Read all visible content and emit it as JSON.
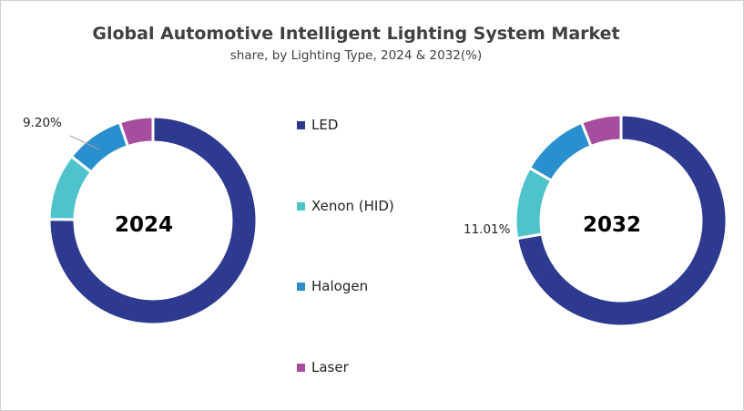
{
  "chart_data": [
    {
      "type": "pie",
      "title": "Global Automotive Intelligent Lighting System Market",
      "subtitle": "share, by Lighting Type, 2024 & 2032(%)",
      "center_label": "2024",
      "categories": [
        "LED",
        "Xenon (HID)",
        "Halogen",
        "Laser"
      ],
      "values": [
        75.2,
        10.4,
        9.2,
        5.2
      ],
      "data_labels": {
        "Halogen": "9.20%"
      },
      "donut": true
    },
    {
      "type": "pie",
      "center_label": "2032",
      "categories": [
        "LED",
        "Xenon (HID)",
        "Halogen",
        "Laser"
      ],
      "values": [
        72.3,
        11.01,
        10.6,
        6.1
      ],
      "data_labels": {
        "Xenon (HID)": "11.01%"
      },
      "donut": true
    }
  ],
  "legend": {
    "position": "center",
    "items": [
      {
        "label": "LED",
        "color": "#2e3a8f"
      },
      {
        "label": "Xenon (HID)",
        "color": "#4fc3cc"
      },
      {
        "label": "Halogen",
        "color": "#2a8fcf"
      },
      {
        "label": "Laser",
        "color": "#a74da0"
      }
    ]
  }
}
